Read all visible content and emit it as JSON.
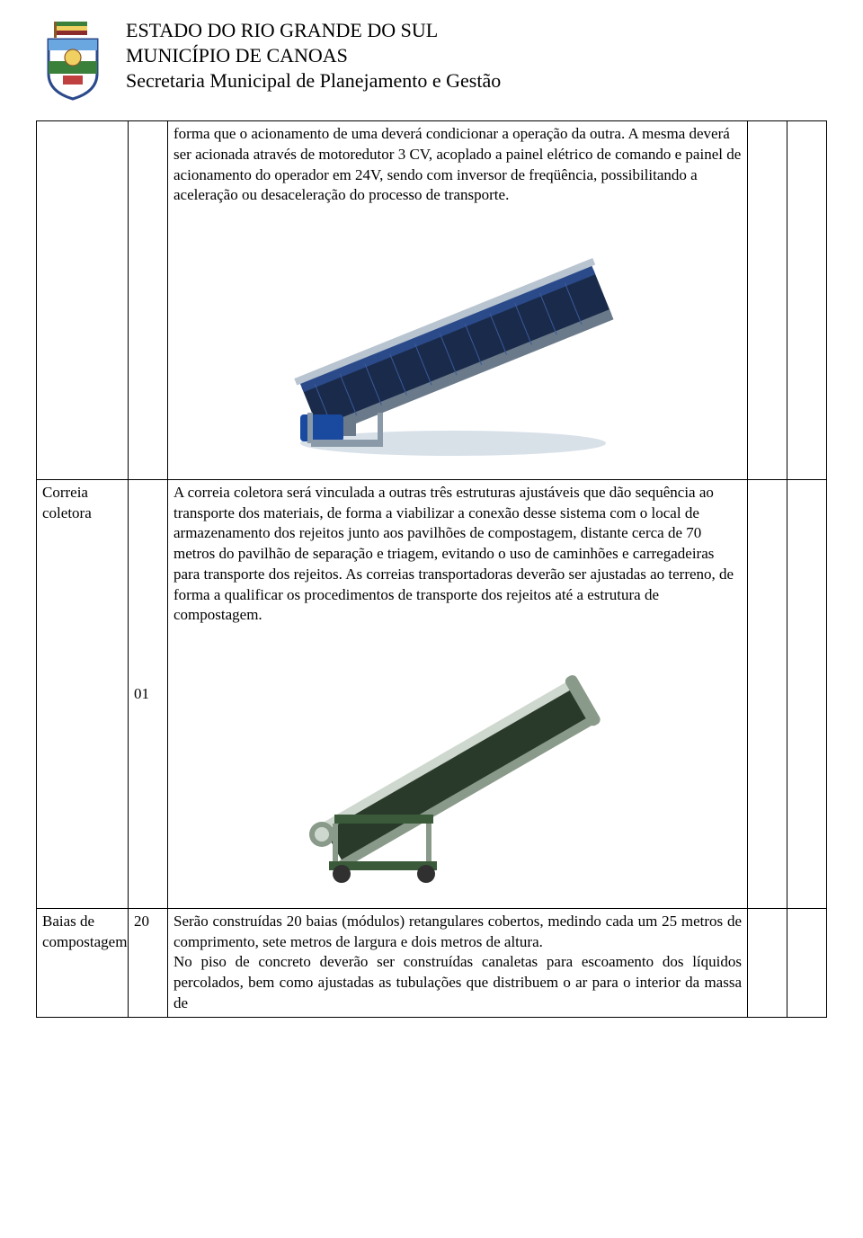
{
  "header": {
    "line1": "ESTADO DO RIO GRANDE DO SUL",
    "line2": "MUNICÍPIO DE CANOAS",
    "line3": "Secretaria Municipal de Planejamento e Gestão"
  },
  "crest": {
    "pole_color": "#8b5a2b",
    "flag_top": "#3a7f3a",
    "flag_mid": "#f0d060",
    "flag_bot": "#8b2b2b",
    "shield_outline": "#2b4a8b",
    "shield_fill": "#ffffff",
    "shield_band": "#3a7f3a",
    "shield_accent": "#c04040"
  },
  "rows": {
    "r1": {
      "label": "",
      "qty": "",
      "desc": "forma que o acionamento de uma deverá condicionar a operação da outra. A mesma deverá ser acionada através de motoredutor 3 CV, acoplado a painel elétrico de comando e painel de acionamento do operador em 24V, sendo com inversor de freqüência, possibilitando a aceleração ou desaceleração do processo de transporte."
    },
    "r2": {
      "label": "Correia coletora",
      "qty": "01",
      "desc": "A correia coletora será vinculada a outras três estruturas ajustáveis que dão sequência ao transporte dos materiais, de forma a viabilizar a conexão desse sistema com o local de armazenamento dos rejeitos junto aos pavilhões de compostagem, distante cerca de 70 metros do pavilhão de separação e triagem, evitando o uso de caminhões e carregadeiras para transporte dos rejeitos. As correias transportadoras  deverão ser ajustadas ao terreno, de forma a qualificar os procedimentos de transporte dos rejeitos até a estrutura de compostagem."
    },
    "r3": {
      "label": "Baias de compostagem",
      "qty": "20",
      "desc": "Serão construídas 20 baias (módulos) retangulares cobertos, medindo cada um 25 metros de comprimento, sete metros de largura e dois metros de altura.\nNo piso de concreto deverão ser construídas canaletas para escoamento dos líquidos percolados, bem como ajustadas as tubulações que distribuem o ar para o interior da massa de"
    }
  },
  "images": {
    "conveyor1": {
      "belt_top": "#2a4a8a",
      "belt_mesh": "#1a2a4a",
      "frame": "#b8c4d0",
      "frame_dark": "#6a7a8a",
      "motor": "#1a4aa0",
      "shadow": "#d8e0e8"
    },
    "conveyor2": {
      "belt": "#2a3a2a",
      "frame": "#cfd8cf",
      "frame_dark": "#8a9a8a",
      "wheel": "#303030",
      "base": "#3a5a3a"
    }
  }
}
